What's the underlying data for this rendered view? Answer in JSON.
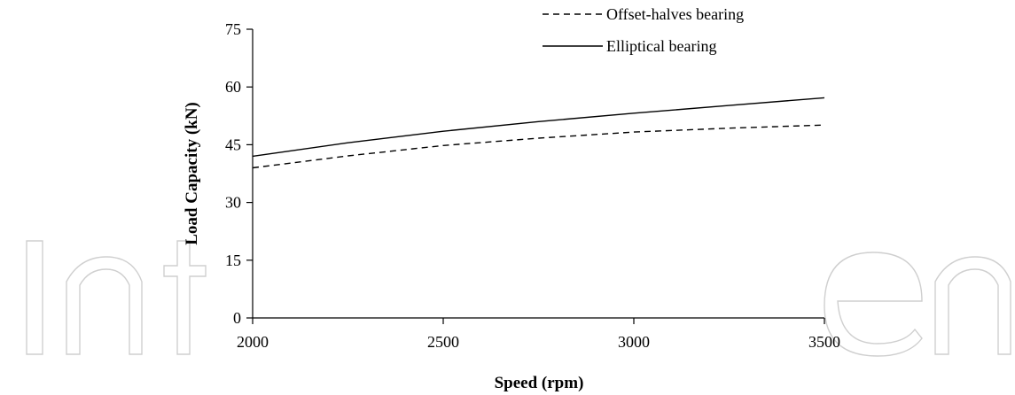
{
  "chart_data": {
    "type": "line",
    "title": "",
    "xlabel": "Speed (rpm)",
    "ylabel": "Load Capacity (kN)",
    "xlim": [
      2000,
      3500
    ],
    "ylim": [
      0,
      75
    ],
    "xticks": [
      2000,
      2500,
      3000,
      3500
    ],
    "yticks": [
      0,
      15,
      30,
      45,
      60,
      75
    ],
    "grid": false,
    "legend_position": "top-center",
    "series": [
      {
        "name": "Offset-halves bearing",
        "line_style": "dashed",
        "color": "#000000",
        "x": [
          2000,
          2250,
          2500,
          2750,
          3000,
          3250,
          3500
        ],
        "y": [
          39.0,
          42.1,
          44.8,
          46.7,
          48.3,
          49.3,
          50.1
        ]
      },
      {
        "name": "Elliptical bearing",
        "line_style": "solid",
        "color": "#000000",
        "x": [
          2000,
          2250,
          2500,
          2750,
          3000,
          3250,
          3500
        ],
        "y": [
          42.0,
          45.5,
          48.5,
          51.0,
          53.2,
          55.2,
          57.2
        ]
      }
    ]
  }
}
